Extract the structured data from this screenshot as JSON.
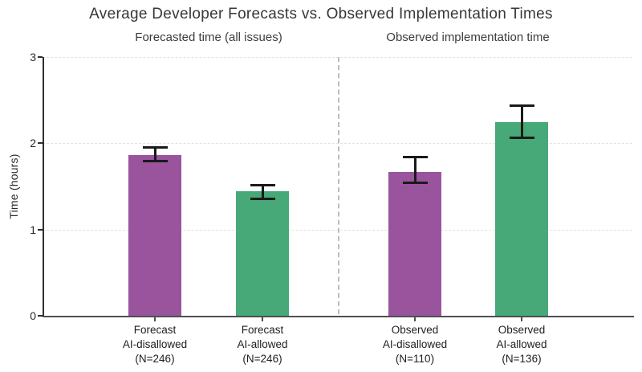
{
  "chart_data": {
    "type": "bar",
    "title": "Average Developer Forecasts vs. Observed Implementation Times",
    "panel_labels": [
      "Forecasted time (all issues)",
      "Observed implementation time"
    ],
    "ylabel": "Time (hours)",
    "ylim": [
      0,
      3
    ],
    "yticks": [
      0,
      1,
      2,
      3
    ],
    "grid": "horizontal dashed gridlines at y=1,2,3",
    "legend_position": "none",
    "divider": "vertical dashed line between forecast and observed panels",
    "error_bar_color": "#1a1a1a",
    "colors": {
      "ai_disallowed_purple": "#9a549e",
      "ai_allowed_green": "#47a878"
    },
    "bars": [
      {
        "panel": "forecast",
        "label_lines": [
          "Forecast",
          "AI-disallowed",
          "(N=246)"
        ],
        "value": 1.86,
        "err_lo": 1.79,
        "err_hi": 1.95,
        "color": "#9a549e",
        "color_name": "purple"
      },
      {
        "panel": "forecast",
        "label_lines": [
          "Forecast",
          "AI-allowed",
          "(N=246)"
        ],
        "value": 1.44,
        "err_lo": 1.36,
        "err_hi": 1.51,
        "color": "#47a878",
        "color_name": "green"
      },
      {
        "panel": "observed",
        "label_lines": [
          "Observed",
          "AI-disallowed",
          "(N=110)"
        ],
        "value": 1.67,
        "err_lo": 1.54,
        "err_hi": 1.84,
        "color": "#9a549e",
        "color_name": "purple"
      },
      {
        "panel": "observed",
        "label_lines": [
          "Observed",
          "AI-allowed",
          "(N=136)"
        ],
        "value": 2.25,
        "err_lo": 2.06,
        "err_hi": 2.44,
        "color": "#47a878",
        "color_name": "green"
      }
    ]
  }
}
